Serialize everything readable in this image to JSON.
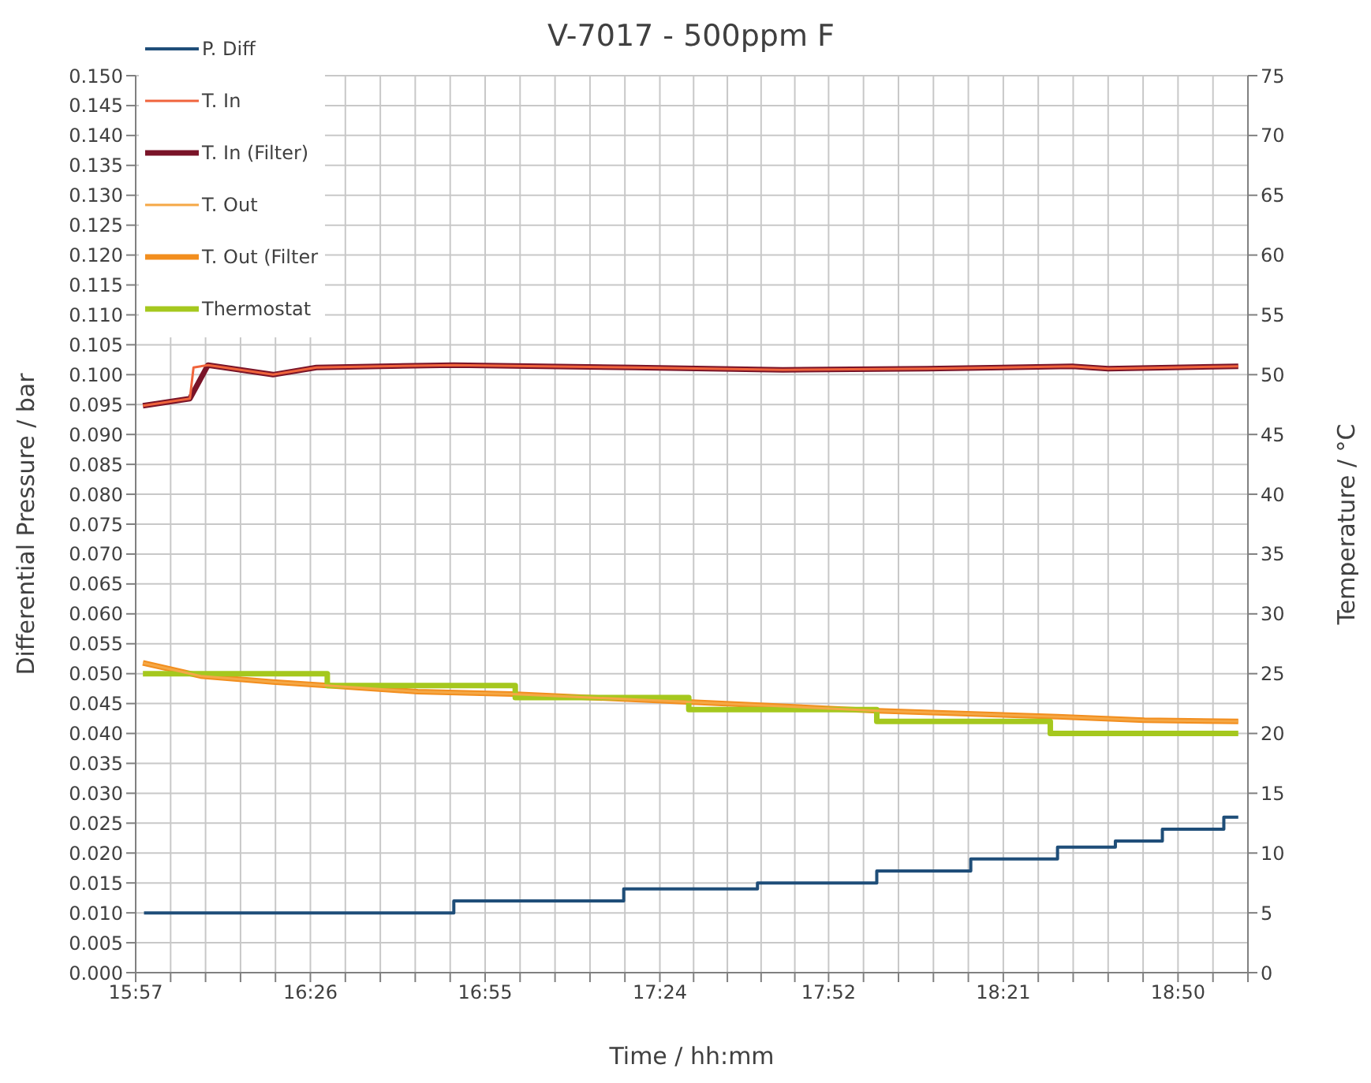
{
  "chart_data": {
    "type": "line",
    "title": "V-7017 - 500ppm F",
    "xlabel": "Time / hh:mm",
    "ylabel": "Differential Pressure / bar",
    "y2label": "Temperature / °C",
    "xlim": [
      15.95,
      19.0267
    ],
    "xticks": [
      {
        "value": 15.95,
        "label": "15:57"
      },
      {
        "value": 16.0467,
        "label": null
      },
      {
        "value": 16.1433,
        "label": null
      },
      {
        "value": 16.24,
        "label": null
      },
      {
        "value": 16.3367,
        "label": null
      },
      {
        "value": 16.4333,
        "label": "16:26"
      },
      {
        "value": 16.53,
        "label": null
      },
      {
        "value": 16.6267,
        "label": null
      },
      {
        "value": 16.7233,
        "label": null
      },
      {
        "value": 16.82,
        "label": null
      },
      {
        "value": 16.9167,
        "label": "16:55"
      },
      {
        "value": 17.0133,
        "label": null
      },
      {
        "value": 17.11,
        "label": null
      },
      {
        "value": 17.2067,
        "label": null
      },
      {
        "value": 17.3033,
        "label": null
      },
      {
        "value": 17.4,
        "label": "17:24"
      },
      {
        "value": 17.4933,
        "label": null
      },
      {
        "value": 17.5867,
        "label": null
      },
      {
        "value": 17.68,
        "label": null
      },
      {
        "value": 17.7733,
        "label": null
      },
      {
        "value": 17.8667,
        "label": "17:52"
      },
      {
        "value": 17.9633,
        "label": null
      },
      {
        "value": 18.06,
        "label": null
      },
      {
        "value": 18.1567,
        "label": null
      },
      {
        "value": 18.2533,
        "label": null
      },
      {
        "value": 18.35,
        "label": "18:21"
      },
      {
        "value": 18.4467,
        "label": null
      },
      {
        "value": 18.5433,
        "label": null
      },
      {
        "value": 18.64,
        "label": null
      },
      {
        "value": 18.7367,
        "label": null
      },
      {
        "value": 18.8333,
        "label": "18:50"
      },
      {
        "value": 18.93,
        "label": null
      },
      {
        "value": 19.0267,
        "label": null
      }
    ],
    "ylim": [
      0,
      0.15
    ],
    "yticks": [
      {
        "value": 0,
        "label": "0.000"
      },
      {
        "value": 0.005,
        "label": "0.005"
      },
      {
        "value": 0.01,
        "label": "0.010"
      },
      {
        "value": 0.015,
        "label": "0.015"
      },
      {
        "value": 0.02,
        "label": "0.020"
      },
      {
        "value": 0.025,
        "label": "0.025"
      },
      {
        "value": 0.03,
        "label": "0.030"
      },
      {
        "value": 0.035,
        "label": "0.035"
      },
      {
        "value": 0.04,
        "label": "0.040"
      },
      {
        "value": 0.045,
        "label": "0.045"
      },
      {
        "value": 0.05,
        "label": "0.050"
      },
      {
        "value": 0.055,
        "label": "0.055"
      },
      {
        "value": 0.06,
        "label": "0.060"
      },
      {
        "value": 0.065,
        "label": "0.065"
      },
      {
        "value": 0.07,
        "label": "0.070"
      },
      {
        "value": 0.075,
        "label": "0.075"
      },
      {
        "value": 0.08,
        "label": "0.080"
      },
      {
        "value": 0.085,
        "label": "0.085"
      },
      {
        "value": 0.09,
        "label": "0.090"
      },
      {
        "value": 0.095,
        "label": "0.095"
      },
      {
        "value": 0.1,
        "label": "0.100"
      },
      {
        "value": 0.105,
        "label": "0.105"
      },
      {
        "value": 0.11,
        "label": "0.110"
      },
      {
        "value": 0.115,
        "label": "0.115"
      },
      {
        "value": 0.12,
        "label": "0.120"
      },
      {
        "value": 0.125,
        "label": "0.125"
      },
      {
        "value": 0.13,
        "label": "0.130"
      },
      {
        "value": 0.135,
        "label": "0.135"
      },
      {
        "value": 0.14,
        "label": "0.140"
      },
      {
        "value": 0.145,
        "label": "0.145"
      },
      {
        "value": 0.15,
        "label": "0.150"
      }
    ],
    "y2lim": [
      0,
      75
    ],
    "y2ticks": [
      0,
      5,
      10,
      15,
      20,
      25,
      30,
      35,
      40,
      45,
      50,
      55,
      60,
      65,
      70,
      75
    ],
    "grid": true,
    "legend": "top left",
    "marker": "none",
    "series": [
      {
        "name": "P. Diff",
        "type": "step",
        "color": "#1f4e79",
        "x": [
          15.973,
          16.83,
          17.3,
          17.67,
          18.0,
          18.26,
          18.5,
          18.66,
          18.79,
          18.96,
          19.0
        ],
        "values": [
          0.01,
          0.012,
          0.014,
          0.015,
          0.017,
          0.019,
          0.021,
          0.022,
          0.024,
          0.026,
          0.026
        ]
      },
      {
        "name": "T. In",
        "axis": "y2",
        "color": "#f0643c",
        "x": [
          15.97,
          16.1,
          16.11,
          16.15,
          16.33,
          16.45,
          16.83,
          17.33,
          17.74,
          18.14,
          18.54,
          18.64,
          19.0
        ],
        "values": [
          47.4,
          48.0,
          50.6,
          50.8,
          50.0,
          50.6,
          50.8,
          50.6,
          50.4,
          50.5,
          50.7,
          50.5,
          50.7
        ]
      },
      {
        "name": "T. In (Filter)",
        "axis": "y2",
        "color": "#7a1428",
        "x": [
          15.97,
          16.1,
          16.15,
          16.33,
          16.45,
          16.83,
          17.33,
          17.74,
          18.14,
          18.54,
          18.64,
          19.0
        ],
        "values": [
          47.4,
          48.0,
          50.8,
          50.0,
          50.6,
          50.8,
          50.6,
          50.4,
          50.5,
          50.7,
          50.5,
          50.7
        ]
      },
      {
        "name": "T. Out",
        "axis": "y2",
        "color": "#f5a846",
        "x": [
          15.97,
          16.13,
          16.33,
          16.48,
          16.73,
          16.99,
          17.5,
          18.0,
          18.5,
          18.74,
          19.0
        ],
        "values": [
          25.9,
          24.8,
          24.3,
          24.0,
          23.5,
          23.3,
          22.6,
          21.9,
          21.4,
          21.1,
          21.0
        ]
      },
      {
        "name": "T. Out (Filter",
        "axis": "y2",
        "color": "#f28e1e",
        "x": [
          15.97,
          16.13,
          16.33,
          16.48,
          16.73,
          16.99,
          17.5,
          18.0,
          18.5,
          18.74,
          19.0
        ],
        "values": [
          25.9,
          24.8,
          24.3,
          24.0,
          23.5,
          23.3,
          22.6,
          21.9,
          21.4,
          21.1,
          21.0
        ]
      },
      {
        "name": "Thermostat",
        "axis": "y2",
        "type": "step",
        "color": "#a5c81e",
        "x": [
          15.97,
          16.48,
          17.0,
          17.48,
          18.0,
          18.48,
          19.0
        ],
        "values": [
          25,
          24,
          23,
          22,
          21,
          20,
          20
        ]
      }
    ]
  }
}
